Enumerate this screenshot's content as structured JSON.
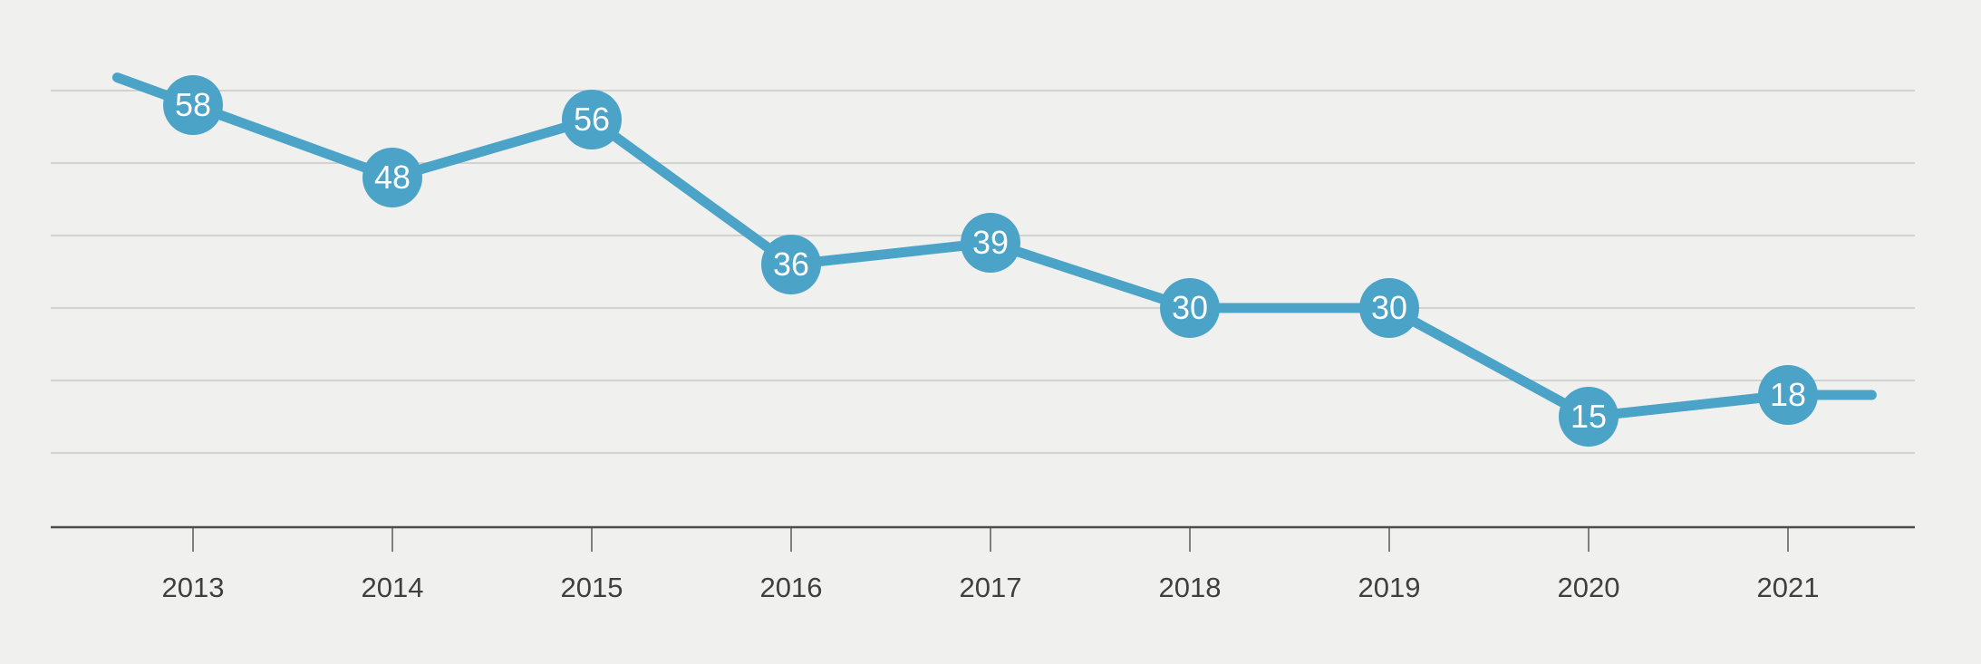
{
  "chart": {
    "background_color": "#f0f0ee",
    "accent_color": "#4ba4c8",
    "gridline_color": "#c7c7c5",
    "axis_color": "#4c4c4c",
    "tick_color": "#5a5a5a",
    "tick_label_color": "#3f3f3f",
    "marker_text_color": "#fdfdfd"
  },
  "chart_data": {
    "type": "line",
    "categories": [
      "2013",
      "2014",
      "2015",
      "2016",
      "2017",
      "2018",
      "2019",
      "2020",
      "2021"
    ],
    "values": [
      58,
      48,
      56,
      36,
      39,
      30,
      30,
      15,
      18
    ],
    "title": "",
    "subtitle": "",
    "xlabel": "",
    "ylabel": "",
    "ylim": [
      0,
      60
    ],
    "y_gridlines": [
      10,
      20,
      30,
      40,
      50,
      60
    ],
    "y_axis_tick_labels": "none",
    "grid": "horizontal-only",
    "legend": "none",
    "data_labels": "inside-circular-markers",
    "line_extensions": {
      "left": {
        "x_year": 2012.62,
        "value": 61.8
      },
      "right": {
        "x_year": 2021.42,
        "value": 18.0
      }
    }
  }
}
